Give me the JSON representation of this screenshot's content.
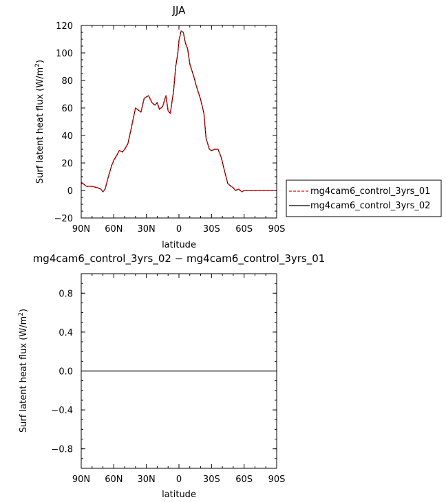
{
  "chart_data": [
    {
      "type": "line",
      "title": "JJA",
      "xlabel": "latitude",
      "ylabel": "Surf latent heat flux (W/m",
      "ylabel_sup": "2",
      "ylabel_close": ")",
      "xlim": [
        90,
        -90
      ],
      "ylim": [
        -20,
        120
      ],
      "xticks": [
        90,
        60,
        30,
        0,
        -30,
        -60,
        -90
      ],
      "xtick_labels": [
        "90N",
        "60N",
        "30N",
        "0",
        "30S",
        "60S",
        "90S"
      ],
      "yticks": [
        -20,
        0,
        20,
        40,
        60,
        80,
        100,
        120
      ],
      "ytick_labels": [
        "−20",
        "0",
        "20",
        "40",
        "60",
        "80",
        "100",
        "120"
      ],
      "x": [
        90,
        85,
        83,
        80,
        75,
        72,
        70,
        68,
        65,
        62,
        60,
        57,
        55,
        52,
        50,
        47,
        44,
        40,
        35,
        32,
        28,
        25,
        22,
        20,
        18,
        15,
        12,
        10,
        8,
        5,
        3,
        1,
        0,
        -2,
        -4,
        -6,
        -8,
        -10,
        -12,
        -14,
        -16,
        -18,
        -20,
        -23,
        -25,
        -28,
        -30,
        -33,
        -36,
        -39,
        -42,
        -45,
        -48,
        -50,
        -52,
        -55,
        -58,
        -60,
        -62,
        -65,
        -68,
        -71,
        -74,
        -77,
        -80,
        -83,
        -86,
        -88,
        -90
      ],
      "series": [
        {
          "name": "mg4cam6_control_3yrs_01",
          "color": "#ff0000",
          "dash": "dashed",
          "values": [
            6,
            3,
            3,
            3,
            2,
            1,
            -1,
            1,
            10,
            18,
            22,
            26,
            29,
            28,
            30,
            34,
            45,
            60,
            57,
            67,
            69,
            64,
            62,
            64,
            59,
            61,
            69,
            58,
            56,
            72,
            90,
            100,
            109,
            116,
            115,
            107,
            103,
            92,
            87,
            82,
            76,
            71,
            66,
            56,
            38,
            30,
            29,
            30,
            30,
            24,
            14,
            5,
            3,
            2,
            0,
            1,
            -1,
            0,
            0,
            0,
            0,
            0,
            0,
            0,
            0,
            0,
            0,
            0,
            0
          ]
        },
        {
          "name": "mg4cam6_control_3yrs_02",
          "color": "#000000",
          "dash": "solid",
          "values": [
            6,
            3,
            3,
            3,
            2,
            1,
            -1,
            1,
            10,
            18,
            22,
            26,
            29,
            28,
            30,
            34,
            45,
            60,
            57,
            67,
            69,
            64,
            62,
            64,
            59,
            61,
            69,
            58,
            56,
            72,
            90,
            100,
            109,
            116,
            115,
            107,
            103,
            92,
            87,
            82,
            76,
            71,
            66,
            56,
            38,
            30,
            29,
            30,
            30,
            24,
            14,
            5,
            3,
            2,
            0,
            1,
            -1,
            0,
            0,
            0,
            0,
            0,
            0,
            0,
            0,
            0,
            0,
            0,
            0
          ]
        }
      ]
    },
    {
      "type": "line",
      "title": "mg4cam6_control_3yrs_02 − mg4cam6_control_3yrs_01",
      "xlabel": "latitude",
      "ylabel": "Surf latent heat flux (W/m",
      "ylabel_sup": "2",
      "ylabel_close": ")",
      "xlim": [
        90,
        -90
      ],
      "ylim": [
        -1,
        1
      ],
      "xticks": [
        90,
        60,
        30,
        0,
        -30,
        -60,
        -90
      ],
      "xtick_labels": [
        "90N",
        "60N",
        "30N",
        "0",
        "30S",
        "60S",
        "90S"
      ],
      "yticks": [
        -0.8,
        -0.4,
        0.0,
        0.4,
        0.8
      ],
      "ytick_labels": [
        "−0.8",
        "−0.4",
        "0.0",
        "0.4",
        "0.8"
      ],
      "x": [
        90,
        -90
      ],
      "series": [
        {
          "color": "#000000",
          "dash": "solid",
          "values": [
            0,
            0
          ]
        }
      ]
    }
  ]
}
